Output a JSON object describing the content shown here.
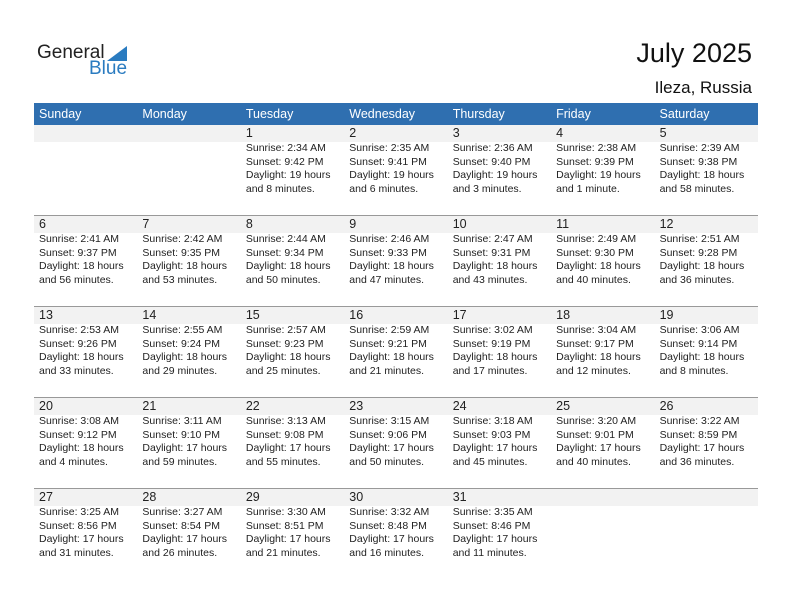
{
  "logo": {
    "general": "General",
    "blue": "Blue"
  },
  "title": "July 2025",
  "location": "Ileza, Russia",
  "weekdays": [
    "Sunday",
    "Monday",
    "Tuesday",
    "Wednesday",
    "Thursday",
    "Friday",
    "Saturday"
  ],
  "days": [
    {
      "day": "1",
      "sunrise": "Sunrise: 2:34 AM",
      "sunset": "Sunset: 9:42 PM",
      "daylight1": "Daylight: 19 hours",
      "daylight2": "and 8 minutes."
    },
    {
      "day": "2",
      "sunrise": "Sunrise: 2:35 AM",
      "sunset": "Sunset: 9:41 PM",
      "daylight1": "Daylight: 19 hours",
      "daylight2": "and 6 minutes."
    },
    {
      "day": "3",
      "sunrise": "Sunrise: 2:36 AM",
      "sunset": "Sunset: 9:40 PM",
      "daylight1": "Daylight: 19 hours",
      "daylight2": "and 3 minutes."
    },
    {
      "day": "4",
      "sunrise": "Sunrise: 2:38 AM",
      "sunset": "Sunset: 9:39 PM",
      "daylight1": "Daylight: 19 hours",
      "daylight2": "and 1 minute."
    },
    {
      "day": "5",
      "sunrise": "Sunrise: 2:39 AM",
      "sunset": "Sunset: 9:38 PM",
      "daylight1": "Daylight: 18 hours",
      "daylight2": "and 58 minutes."
    },
    {
      "day": "6",
      "sunrise": "Sunrise: 2:41 AM",
      "sunset": "Sunset: 9:37 PM",
      "daylight1": "Daylight: 18 hours",
      "daylight2": "and 56 minutes."
    },
    {
      "day": "7",
      "sunrise": "Sunrise: 2:42 AM",
      "sunset": "Sunset: 9:35 PM",
      "daylight1": "Daylight: 18 hours",
      "daylight2": "and 53 minutes."
    },
    {
      "day": "8",
      "sunrise": "Sunrise: 2:44 AM",
      "sunset": "Sunset: 9:34 PM",
      "daylight1": "Daylight: 18 hours",
      "daylight2": "and 50 minutes."
    },
    {
      "day": "9",
      "sunrise": "Sunrise: 2:46 AM",
      "sunset": "Sunset: 9:33 PM",
      "daylight1": "Daylight: 18 hours",
      "daylight2": "and 47 minutes."
    },
    {
      "day": "10",
      "sunrise": "Sunrise: 2:47 AM",
      "sunset": "Sunset: 9:31 PM",
      "daylight1": "Daylight: 18 hours",
      "daylight2": "and 43 minutes."
    },
    {
      "day": "11",
      "sunrise": "Sunrise: 2:49 AM",
      "sunset": "Sunset: 9:30 PM",
      "daylight1": "Daylight: 18 hours",
      "daylight2": "and 40 minutes."
    },
    {
      "day": "12",
      "sunrise": "Sunrise: 2:51 AM",
      "sunset": "Sunset: 9:28 PM",
      "daylight1": "Daylight: 18 hours",
      "daylight2": "and 36 minutes."
    },
    {
      "day": "13",
      "sunrise": "Sunrise: 2:53 AM",
      "sunset": "Sunset: 9:26 PM",
      "daylight1": "Daylight: 18 hours",
      "daylight2": "and 33 minutes."
    },
    {
      "day": "14",
      "sunrise": "Sunrise: 2:55 AM",
      "sunset": "Sunset: 9:24 PM",
      "daylight1": "Daylight: 18 hours",
      "daylight2": "and 29 minutes."
    },
    {
      "day": "15",
      "sunrise": "Sunrise: 2:57 AM",
      "sunset": "Sunset: 9:23 PM",
      "daylight1": "Daylight: 18 hours",
      "daylight2": "and 25 minutes."
    },
    {
      "day": "16",
      "sunrise": "Sunrise: 2:59 AM",
      "sunset": "Sunset: 9:21 PM",
      "daylight1": "Daylight: 18 hours",
      "daylight2": "and 21 minutes."
    },
    {
      "day": "17",
      "sunrise": "Sunrise: 3:02 AM",
      "sunset": "Sunset: 9:19 PM",
      "daylight1": "Daylight: 18 hours",
      "daylight2": "and 17 minutes."
    },
    {
      "day": "18",
      "sunrise": "Sunrise: 3:04 AM",
      "sunset": "Sunset: 9:17 PM",
      "daylight1": "Daylight: 18 hours",
      "daylight2": "and 12 minutes."
    },
    {
      "day": "19",
      "sunrise": "Sunrise: 3:06 AM",
      "sunset": "Sunset: 9:14 PM",
      "daylight1": "Daylight: 18 hours",
      "daylight2": "and 8 minutes."
    },
    {
      "day": "20",
      "sunrise": "Sunrise: 3:08 AM",
      "sunset": "Sunset: 9:12 PM",
      "daylight1": "Daylight: 18 hours",
      "daylight2": "and 4 minutes."
    },
    {
      "day": "21",
      "sunrise": "Sunrise: 3:11 AM",
      "sunset": "Sunset: 9:10 PM",
      "daylight1": "Daylight: 17 hours",
      "daylight2": "and 59 minutes."
    },
    {
      "day": "22",
      "sunrise": "Sunrise: 3:13 AM",
      "sunset": "Sunset: 9:08 PM",
      "daylight1": "Daylight: 17 hours",
      "daylight2": "and 55 minutes."
    },
    {
      "day": "23",
      "sunrise": "Sunrise: 3:15 AM",
      "sunset": "Sunset: 9:06 PM",
      "daylight1": "Daylight: 17 hours",
      "daylight2": "and 50 minutes."
    },
    {
      "day": "24",
      "sunrise": "Sunrise: 3:18 AM",
      "sunset": "Sunset: 9:03 PM",
      "daylight1": "Daylight: 17 hours",
      "daylight2": "and 45 minutes."
    },
    {
      "day": "25",
      "sunrise": "Sunrise: 3:20 AM",
      "sunset": "Sunset: 9:01 PM",
      "daylight1": "Daylight: 17 hours",
      "daylight2": "and 40 minutes."
    },
    {
      "day": "26",
      "sunrise": "Sunrise: 3:22 AM",
      "sunset": "Sunset: 8:59 PM",
      "daylight1": "Daylight: 17 hours",
      "daylight2": "and 36 minutes."
    },
    {
      "day": "27",
      "sunrise": "Sunrise: 3:25 AM",
      "sunset": "Sunset: 8:56 PM",
      "daylight1": "Daylight: 17 hours",
      "daylight2": "and 31 minutes."
    },
    {
      "day": "28",
      "sunrise": "Sunrise: 3:27 AM",
      "sunset": "Sunset: 8:54 PM",
      "daylight1": "Daylight: 17 hours",
      "daylight2": "and 26 minutes."
    },
    {
      "day": "29",
      "sunrise": "Sunrise: 3:30 AM",
      "sunset": "Sunset: 8:51 PM",
      "daylight1": "Daylight: 17 hours",
      "daylight2": "and 21 minutes."
    },
    {
      "day": "30",
      "sunrise": "Sunrise: 3:32 AM",
      "sunset": "Sunset: 8:48 PM",
      "daylight1": "Daylight: 17 hours",
      "daylight2": "and 16 minutes."
    },
    {
      "day": "31",
      "sunrise": "Sunrise: 3:35 AM",
      "sunset": "Sunset: 8:46 PM",
      "daylight1": "Daylight: 17 hours",
      "daylight2": "and 11 minutes."
    }
  ],
  "colors": {
    "header": "#2f6fb0",
    "brand": "#2a7bc0",
    "band": "#f2f2f2"
  }
}
